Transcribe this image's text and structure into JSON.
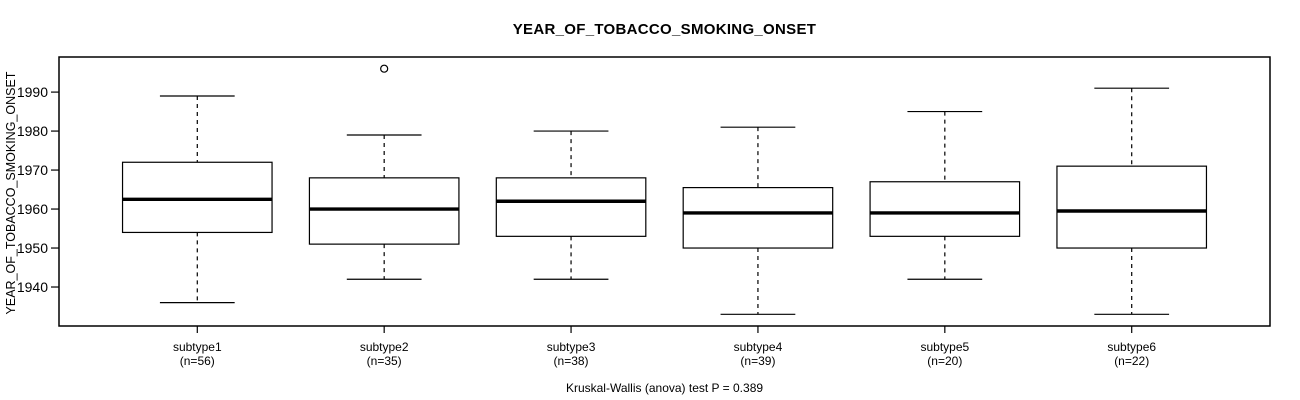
{
  "chart_data": {
    "type": "boxplot",
    "title": "YEAR_OF_TOBACCO_SMOKING_ONSET",
    "xlabel": "",
    "ylabel": "YEAR_OF_TOBACCO_SMOKING_ONSET",
    "caption": "Kruskal-Wallis (anova) test P = 0.389",
    "ylim": [
      1930,
      1999
    ],
    "yticks": [
      1940,
      1950,
      1960,
      1970,
      1980,
      1990
    ],
    "grid": false,
    "legend_position": "none",
    "colors": {
      "line": "#000000",
      "median": "#000000",
      "box_fill": "#ffffff",
      "background": "#ffffff"
    },
    "groups": [
      {
        "label": "subtype1",
        "n": 56,
        "n_label": "(n=56)",
        "whisker_low": 1936,
        "q1": 1954,
        "median": 1962.5,
        "q3": 1972,
        "whisker_high": 1989,
        "outliers": []
      },
      {
        "label": "subtype2",
        "n": 35,
        "n_label": "(n=35)",
        "whisker_low": 1942,
        "q1": 1951,
        "median": 1960,
        "q3": 1968,
        "whisker_high": 1979,
        "outliers": [
          1996
        ]
      },
      {
        "label": "subtype3",
        "n": 38,
        "n_label": "(n=38)",
        "whisker_low": 1942,
        "q1": 1953,
        "median": 1962,
        "q3": 1968,
        "whisker_high": 1980,
        "outliers": []
      },
      {
        "label": "subtype4",
        "n": 39,
        "n_label": "(n=39)",
        "whisker_low": 1933,
        "q1": 1950,
        "median": 1959,
        "q3": 1965.5,
        "whisker_high": 1981,
        "outliers": []
      },
      {
        "label": "subtype5",
        "n": 20,
        "n_label": "(n=20)",
        "whisker_low": 1942,
        "q1": 1953,
        "median": 1959,
        "q3": 1967,
        "whisker_high": 1985,
        "outliers": []
      },
      {
        "label": "subtype6",
        "n": 22,
        "n_label": "(n=22)",
        "whisker_low": 1933,
        "q1": 1950,
        "median": 1959.5,
        "q3": 1971,
        "whisker_high": 1991,
        "outliers": []
      }
    ]
  }
}
